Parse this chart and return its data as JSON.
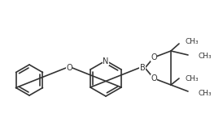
{
  "background": "#ffffff",
  "line_color": "#333333",
  "line_width": 1.2,
  "font_size": 6.5,
  "atom_labels": {
    "N": "N",
    "O_ether": "O",
    "B": "B",
    "O1_pinacol": "O",
    "O2_pinacol": "O",
    "CH3_labels": [
      "CH₃",
      "CH₃",
      "CH₃",
      "CH₃"
    ]
  }
}
